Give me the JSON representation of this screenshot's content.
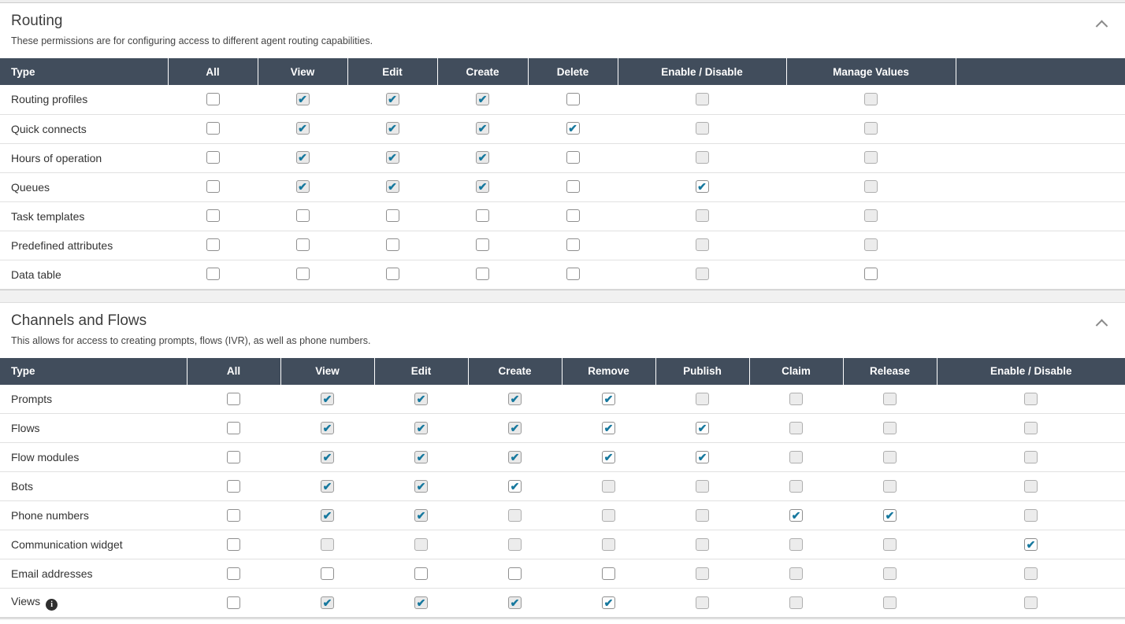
{
  "colors": {
    "table_header_bg": "#414d5c",
    "table_header_text": "#ffffff",
    "checkmark": "#16789E",
    "section_band": "#f1f1f1"
  },
  "icons": {
    "collapse": "chevron-up-icon",
    "views_info": "info-icon",
    "checked_glyph": "✔"
  },
  "sections": [
    {
      "title": "Routing",
      "description": "These permissions are for configuring access to different agent routing capabilities.",
      "columns": [
        "Type",
        "All",
        "View",
        "Edit",
        "Create",
        "Delete",
        "Enable / Disable",
        "Manage Values"
      ],
      "rows": [
        {
          "label": "Routing profiles",
          "cells": [
            "unchecked",
            "checked-dim",
            "checked-dim",
            "checked-dim",
            "unchecked",
            "disabled",
            "disabled"
          ]
        },
        {
          "label": "Quick connects",
          "cells": [
            "unchecked",
            "checked-dim",
            "checked-dim",
            "checked-dim",
            "checked",
            "disabled",
            "disabled"
          ]
        },
        {
          "label": "Hours of operation",
          "cells": [
            "unchecked",
            "checked-dim",
            "checked-dim",
            "checked-dim",
            "unchecked",
            "disabled",
            "disabled"
          ]
        },
        {
          "label": "Queues",
          "cells": [
            "unchecked",
            "checked-dim",
            "checked-dim",
            "checked-dim",
            "unchecked",
            "checked",
            "disabled"
          ]
        },
        {
          "label": "Task templates",
          "cells": [
            "unchecked",
            "unchecked",
            "unchecked",
            "unchecked",
            "unchecked",
            "disabled",
            "disabled"
          ]
        },
        {
          "label": "Predefined attributes",
          "cells": [
            "unchecked",
            "unchecked",
            "unchecked",
            "unchecked",
            "unchecked",
            "disabled",
            "disabled"
          ]
        },
        {
          "label": "Data table",
          "cells": [
            "unchecked",
            "unchecked",
            "unchecked",
            "unchecked",
            "unchecked",
            "disabled",
            "unchecked"
          ]
        }
      ]
    },
    {
      "title": "Channels and Flows",
      "description": "This allows for access to creating prompts, flows (IVR), as well as phone numbers.",
      "columns": [
        "Type",
        "All",
        "View",
        "Edit",
        "Create",
        "Remove",
        "Publish",
        "Claim",
        "Release",
        "Enable / Disable"
      ],
      "rows": [
        {
          "label": "Prompts",
          "cells": [
            "unchecked",
            "checked-dim",
            "checked-dim",
            "checked-dim",
            "checked",
            "disabled",
            "disabled",
            "disabled",
            "disabled"
          ]
        },
        {
          "label": "Flows",
          "cells": [
            "unchecked",
            "checked-dim",
            "checked-dim",
            "checked-dim",
            "checked",
            "checked",
            "disabled",
            "disabled",
            "disabled"
          ]
        },
        {
          "label": "Flow modules",
          "cells": [
            "unchecked",
            "checked-dim",
            "checked-dim",
            "checked-dim",
            "checked",
            "checked",
            "disabled",
            "disabled",
            "disabled"
          ]
        },
        {
          "label": "Bots",
          "cells": [
            "unchecked",
            "checked-dim",
            "checked-dim",
            "checked",
            "disabled",
            "disabled",
            "disabled",
            "disabled",
            "disabled"
          ]
        },
        {
          "label": "Phone numbers",
          "cells": [
            "unchecked",
            "checked-dim",
            "checked-dim",
            "disabled",
            "disabled",
            "disabled",
            "checked",
            "checked",
            "disabled"
          ]
        },
        {
          "label": "Communication widget",
          "cells": [
            "unchecked",
            "disabled",
            "disabled",
            "disabled",
            "disabled",
            "disabled",
            "disabled",
            "disabled",
            "checked"
          ]
        },
        {
          "label": "Email addresses",
          "cells": [
            "unchecked",
            "unchecked",
            "unchecked",
            "unchecked",
            "unchecked",
            "disabled",
            "disabled",
            "disabled",
            "disabled"
          ]
        },
        {
          "label": "Views",
          "info": true,
          "cells": [
            "unchecked",
            "checked-dim",
            "checked-dim",
            "checked-dim",
            "checked",
            "disabled",
            "disabled",
            "disabled",
            "disabled"
          ]
        }
      ]
    }
  ]
}
